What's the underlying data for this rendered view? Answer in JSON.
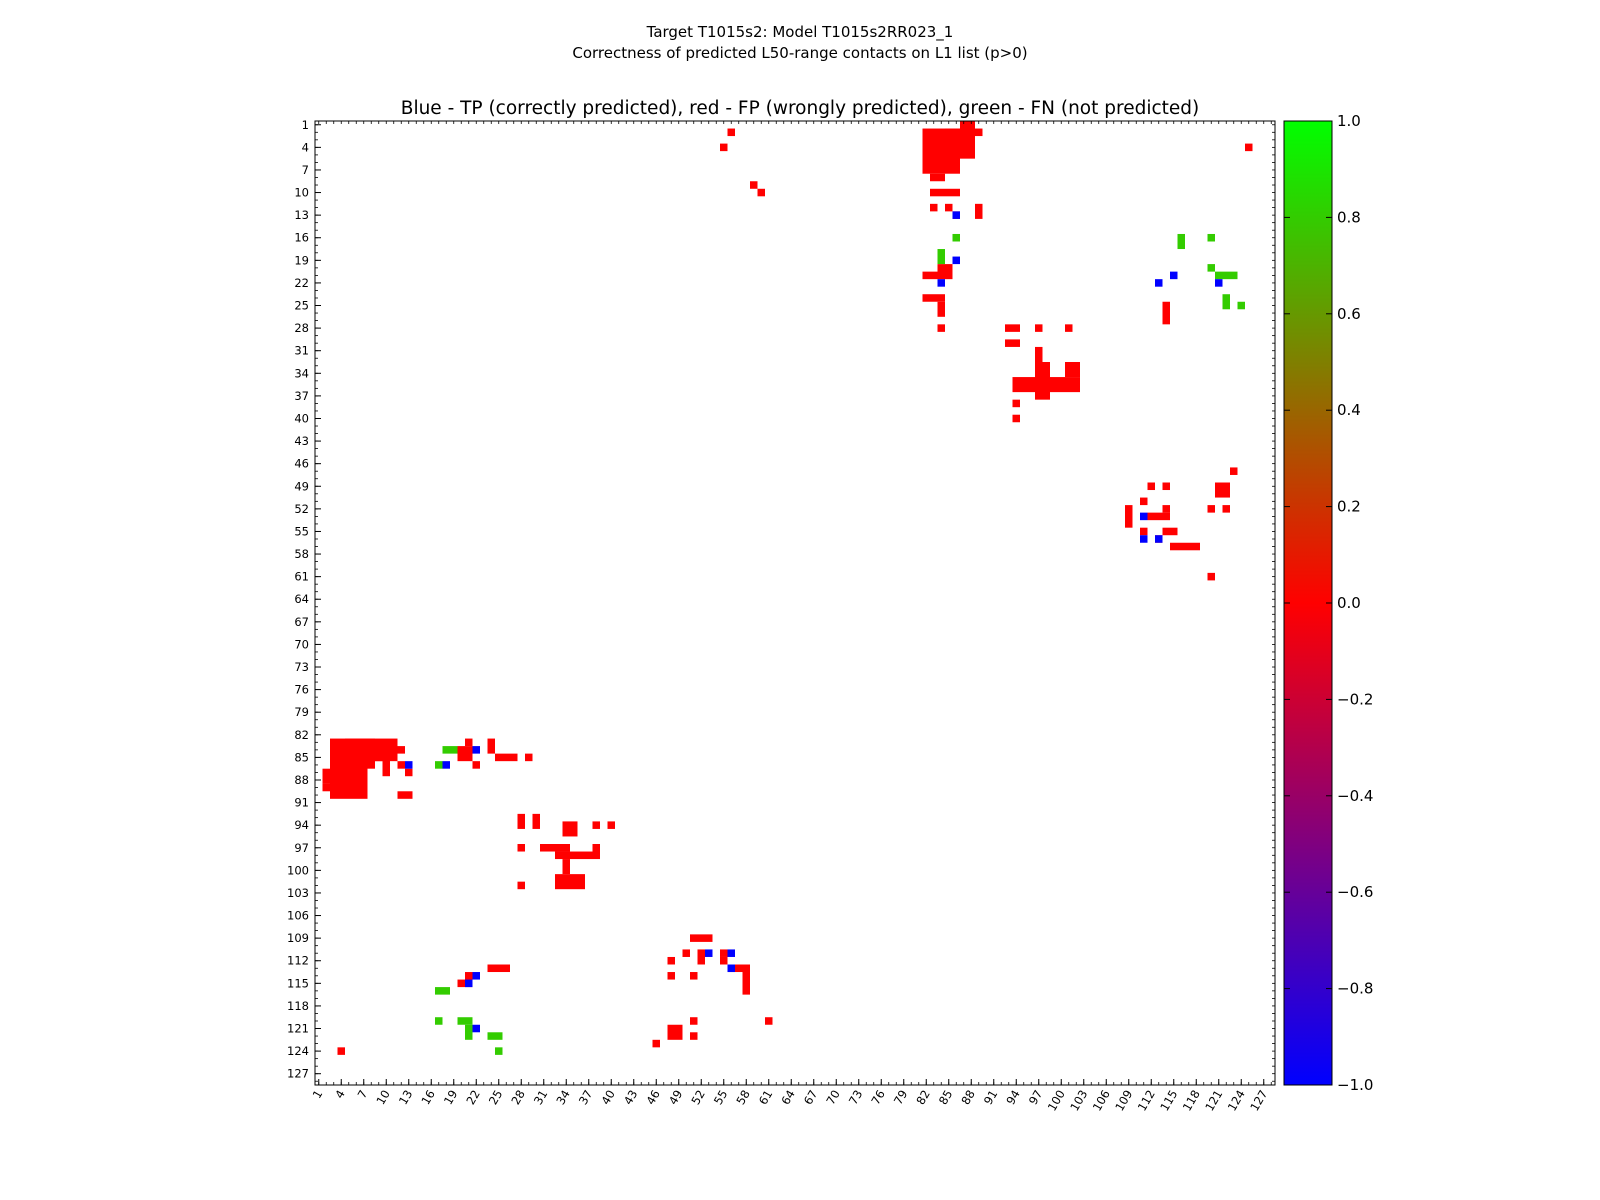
{
  "chart_data": {
    "type": "heatmap",
    "suptitle_line1": "Target T1015s2: Model T1015s2RR023_1",
    "suptitle_line2": "Correctness of predicted L50-range contacts on L1 list (p>0)",
    "title": "Blue - TP (correctly predicted), red - FP (wrongly predicted), green - FN (not predicted)",
    "xlabel": "",
    "ylabel": "",
    "n": 128,
    "xlim": [
      1,
      128
    ],
    "ylim": [
      1,
      128
    ],
    "tick_labels": [
      "1",
      "4",
      "7",
      "10",
      "13",
      "16",
      "19",
      "22",
      "25",
      "28",
      "31",
      "34",
      "37",
      "40",
      "43",
      "46",
      "49",
      "52",
      "55",
      "58",
      "61",
      "64",
      "67",
      "70",
      "73",
      "76",
      "79",
      "82",
      "85",
      "88",
      "91",
      "94",
      "97",
      "100",
      "103",
      "106",
      "109",
      "112",
      "115",
      "118",
      "121",
      "124",
      "127"
    ],
    "colorbar": {
      "min": -1.0,
      "max": 1.0,
      "ticks": [
        "1.0",
        "0.8",
        "0.6",
        "0.4",
        "0.2",
        "0.0",
        "−0.2",
        "−0.4",
        "−0.6",
        "−0.8",
        "−1.0"
      ],
      "stops": [
        "#0000ff",
        "#ff0000",
        "#00ff00"
      ]
    },
    "categories": {
      "TP": {
        "value": -1,
        "color": "#0000ff"
      },
      "FP": {
        "value": 0,
        "color": "#ff0000"
      },
      "FN": {
        "value": 1,
        "color": "#33cc00"
      }
    },
    "fp_rects": [
      [
        3,
        83,
        4,
        90
      ],
      [
        5,
        83,
        3,
        86
      ],
      [
        8,
        83,
        3,
        85
      ],
      [
        9,
        84,
        1,
        85
      ],
      [
        2,
        87,
        1,
        88
      ],
      [
        2,
        88,
        3,
        88
      ],
      [
        2,
        89,
        0,
        89
      ],
      [
        4,
        88,
        0,
        89
      ],
      [
        10,
        85,
        0,
        87
      ],
      [
        12,
        84,
        0,
        84
      ],
      [
        12,
        86,
        0,
        86
      ],
      [
        13,
        87,
        0,
        87
      ],
      [
        12,
        90,
        1,
        90
      ],
      [
        20,
        84,
        1,
        85
      ],
      [
        21,
        83,
        0,
        83
      ],
      [
        22,
        86,
        0,
        86
      ],
      [
        24,
        83,
        0,
        84
      ],
      [
        25,
        85,
        2,
        85
      ],
      [
        29,
        85,
        0,
        85
      ],
      [
        28,
        93,
        0,
        94
      ],
      [
        30,
        93,
        0,
        94
      ],
      [
        34,
        94,
        1,
        95
      ],
      [
        38,
        94,
        0,
        94
      ],
      [
        40,
        94,
        0,
        94
      ],
      [
        28,
        97,
        0,
        97
      ],
      [
        31,
        97,
        2,
        97
      ],
      [
        34,
        97,
        0,
        97
      ],
      [
        33,
        98,
        4,
        98
      ],
      [
        38,
        97,
        0,
        98
      ],
      [
        34,
        99,
        0,
        100
      ],
      [
        28,
        102,
        0,
        102
      ],
      [
        33,
        101,
        1,
        102
      ],
      [
        35,
        101,
        1,
        102
      ],
      [
        51,
        109,
        2,
        109
      ],
      [
        50,
        111,
        0,
        111
      ],
      [
        52,
        111,
        0,
        112
      ],
      [
        55,
        111,
        0,
        111
      ],
      [
        48,
        112,
        0,
        112
      ],
      [
        55,
        112,
        0,
        112
      ],
      [
        56,
        113,
        1,
        113
      ],
      [
        58,
        113,
        0,
        116
      ],
      [
        48,
        114,
        0,
        114
      ],
      [
        51,
        114,
        0,
        114
      ],
      [
        48,
        121,
        1,
        122
      ],
      [
        51,
        120,
        0,
        120
      ],
      [
        51,
        122,
        0,
        122
      ],
      [
        46,
        123,
        0,
        123
      ],
      [
        61,
        120,
        0,
        120
      ],
      [
        4,
        124,
        0,
        124
      ],
      [
        24,
        113,
        2,
        113
      ],
      [
        21,
        114,
        0,
        115
      ],
      [
        20,
        115,
        0,
        115
      ],
      [
        56,
        2,
        0,
        2
      ],
      [
        55,
        4,
        0,
        4
      ],
      [
        59,
        9,
        0,
        9
      ],
      [
        60,
        10,
        0,
        10
      ],
      [
        82,
        2,
        4,
        7
      ],
      [
        85,
        2,
        1,
        5
      ],
      [
        87,
        1,
        1,
        5
      ],
      [
        89,
        2,
        0,
        2
      ],
      [
        83,
        8,
        1,
        8
      ],
      [
        83,
        10,
        3,
        10
      ],
      [
        83,
        12,
        0,
        12
      ],
      [
        85,
        12,
        0,
        12
      ],
      [
        86,
        13,
        0,
        13
      ],
      [
        89,
        12,
        0,
        13
      ],
      [
        84,
        20,
        1,
        21
      ],
      [
        82,
        21,
        1,
        21
      ],
      [
        82,
        24,
        2,
        24
      ],
      [
        84,
        25,
        0,
        26
      ],
      [
        84,
        28,
        0,
        28
      ],
      [
        93,
        28,
        1,
        28
      ],
      [
        97,
        28,
        0,
        28
      ],
      [
        101,
        28,
        0,
        28
      ],
      [
        93,
        30,
        1,
        30
      ],
      [
        97,
        31,
        0,
        37
      ],
      [
        98,
        33,
        0,
        37
      ],
      [
        101,
        33,
        1,
        34
      ],
      [
        96,
        35,
        6,
        36
      ],
      [
        94,
        35,
        1,
        36
      ],
      [
        94,
        38,
        0,
        38
      ],
      [
        94,
        40,
        0,
        40
      ],
      [
        112,
        49,
        0,
        49
      ],
      [
        114,
        49,
        0,
        49
      ],
      [
        109,
        52,
        0,
        54
      ],
      [
        111,
        51,
        0,
        51
      ],
      [
        112,
        53,
        2,
        53
      ],
      [
        114,
        52,
        0,
        52
      ],
      [
        120,
        52,
        0,
        52
      ],
      [
        122,
        52,
        0,
        52
      ],
      [
        121,
        49,
        1,
        50
      ],
      [
        123,
        47,
        0,
        47
      ],
      [
        125,
        4,
        0,
        4
      ],
      [
        111,
        55,
        0,
        55
      ],
      [
        113,
        56,
        0,
        56
      ],
      [
        114,
        55,
        1,
        55
      ],
      [
        115,
        57,
        3,
        57
      ],
      [
        120,
        61,
        0,
        61
      ],
      [
        114,
        25,
        0,
        27
      ]
    ],
    "fn_rects": [
      [
        18,
        84,
        1,
        84
      ],
      [
        17,
        86,
        0,
        86
      ],
      [
        17,
        116,
        1,
        116
      ],
      [
        17,
        120,
        0,
        120
      ],
      [
        20,
        120,
        1,
        120
      ],
      [
        21,
        121,
        0,
        122
      ],
      [
        24,
        122,
        1,
        122
      ],
      [
        25,
        124,
        0,
        124
      ],
      [
        84,
        18,
        0,
        19
      ],
      [
        86,
        16,
        0,
        16
      ],
      [
        116,
        16,
        0,
        17
      ],
      [
        120,
        16,
        0,
        16
      ],
      [
        120,
        20,
        0,
        20
      ],
      [
        121,
        21,
        2,
        21
      ],
      [
        122,
        24,
        0,
        25
      ],
      [
        124,
        25,
        0,
        25
      ]
    ],
    "tp_cells": [
      [
        13,
        86
      ],
      [
        18,
        86
      ],
      [
        22,
        84
      ],
      [
        21,
        115
      ],
      [
        22,
        121
      ],
      [
        22,
        114
      ],
      [
        53,
        111
      ],
      [
        56,
        111
      ],
      [
        56,
        113
      ],
      [
        84,
        22
      ],
      [
        86,
        13
      ],
      [
        86,
        19
      ],
      [
        113,
        22
      ],
      [
        115,
        21
      ],
      [
        121,
        22
      ],
      [
        111,
        53
      ],
      [
        111,
        56
      ],
      [
        113,
        56
      ]
    ]
  }
}
